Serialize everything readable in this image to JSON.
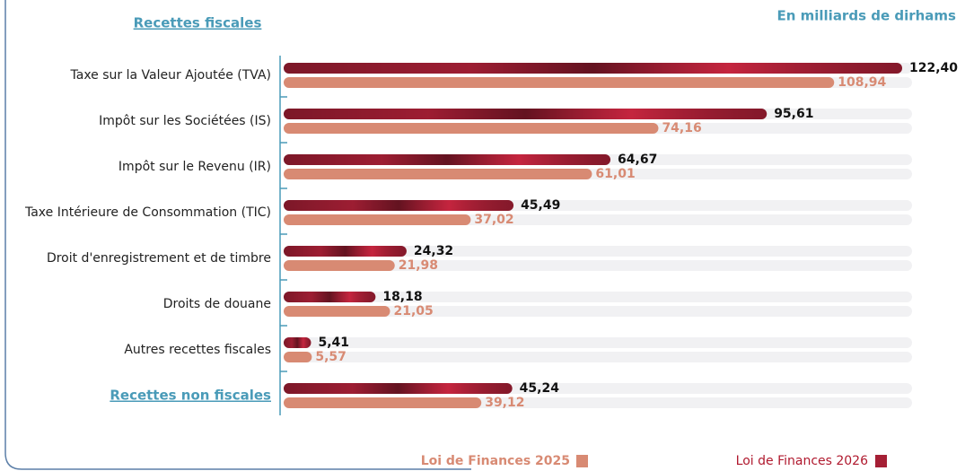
{
  "chart_data": {
    "type": "hbar",
    "title": "Recettes fiscales",
    "subtitle": "En milliards de dirhams",
    "categories": [
      "Taxe sur la Valeur Ajoutée (TVA)",
      "Impôt sur les Sociétées (IS)",
      "Impôt sur le Revenu (IR)",
      "Taxe Intérieure de Consommation (TIC)",
      "Droit d'enregistrement et de timbre",
      "Droits de douane",
      "Autres recettes fiscales",
      "Recettes non fiscales"
    ],
    "series": [
      {
        "name": "Loi de Finances 2026",
        "color": "#a51f35",
        "values": [
          122.4,
          95.61,
          64.67,
          45.49,
          24.32,
          18.18,
          5.41,
          45.24
        ],
        "value_labels": [
          "122,40",
          "95,61",
          "64,67",
          "45,49",
          "24,32",
          "18,18",
          "5,41",
          "45,24"
        ]
      },
      {
        "name": "Loi de Finances 2025",
        "color": "#d88a73",
        "values": [
          108.94,
          74.16,
          61.01,
          37.02,
          21.98,
          21.05,
          5.57,
          39.12
        ],
        "value_labels": [
          "108,94",
          "74,16",
          "61,01",
          "37,02",
          "21,98",
          "21,05",
          "5,57",
          "39,12"
        ]
      }
    ]
  }
}
